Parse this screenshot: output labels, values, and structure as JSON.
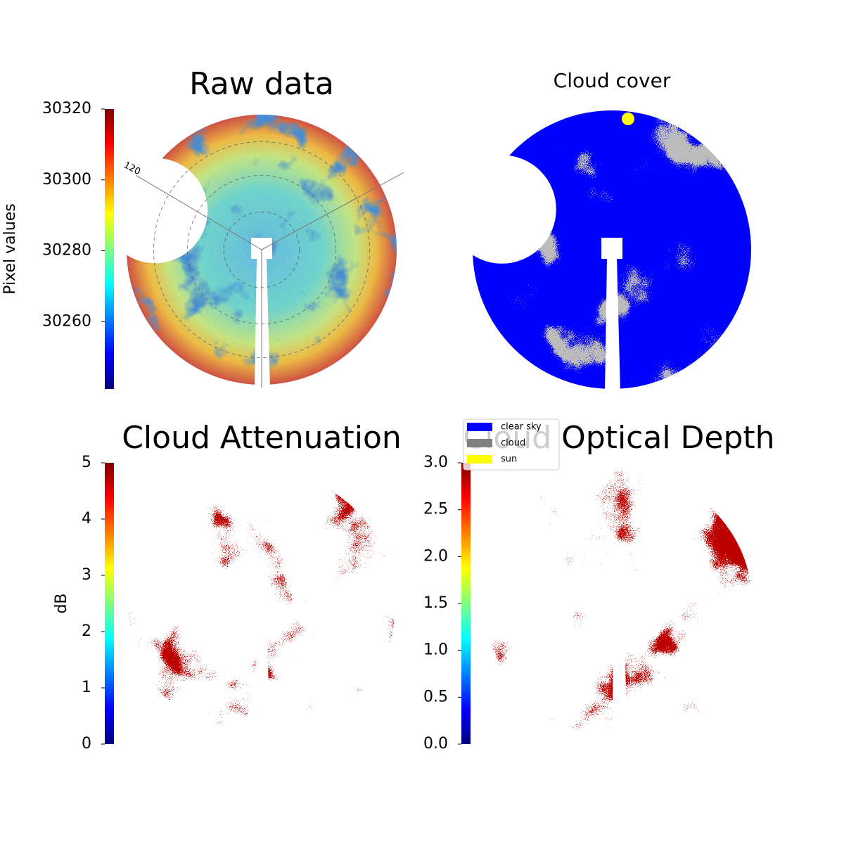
{
  "chart_data": [
    {
      "type": "image",
      "title": "Raw data",
      "annotations": [
        "120"
      ],
      "colorbar": {
        "label": "Pixel values",
        "colormap": "jet",
        "lim": [
          30241,
          30320
        ],
        "ticks": [
          30260,
          30280,
          30300,
          30320
        ]
      }
    },
    {
      "type": "image",
      "title": "Cloud cover",
      "legend": [
        {
          "name": "clear sky",
          "color": "#0000ff"
        },
        {
          "name": "cloud",
          "color": "#808080"
        },
        {
          "name": "sun",
          "color": "#ffff00"
        }
      ]
    },
    {
      "type": "image",
      "title": "Cloud Attenuation",
      "colorbar": {
        "label": "dB",
        "colormap": "jet",
        "lim": [
          0,
          5
        ],
        "ticks": [
          0,
          1,
          2,
          3,
          4,
          5
        ]
      }
    },
    {
      "type": "image",
      "title": "Cloud Optical Depth",
      "colorbar": {
        "colormap": "jet",
        "lim": [
          0,
          3
        ],
        "ticks": [
          {
            "value": 0,
            "label": "0.0"
          },
          {
            "value": 0.5,
            "label": "0.5"
          },
          {
            "value": 1,
            "label": "1.0"
          },
          {
            "value": 1.5,
            "label": "1.5"
          },
          {
            "value": 2,
            "label": "2.0"
          },
          {
            "value": 2.5,
            "label": "2.5"
          },
          {
            "value": 3,
            "label": "3.0"
          }
        ]
      }
    }
  ]
}
